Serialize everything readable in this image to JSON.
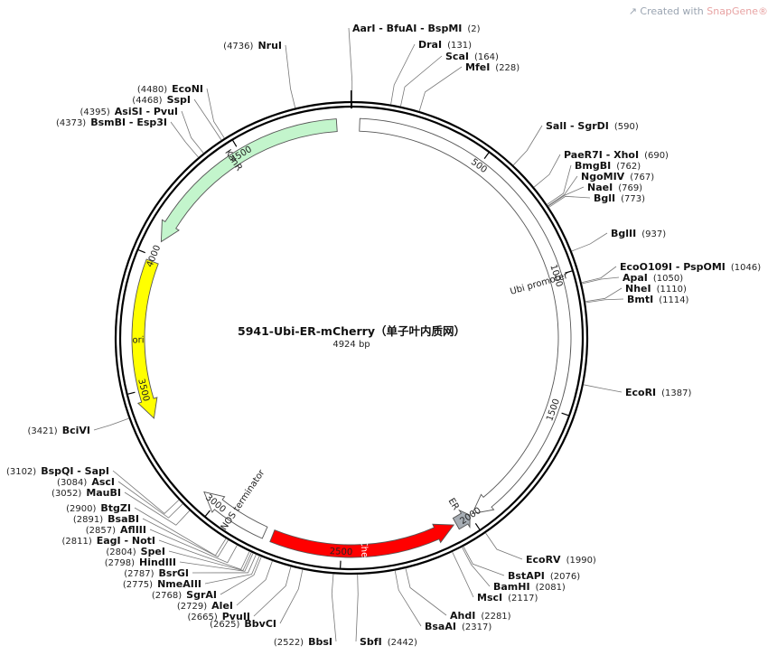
{
  "plasmid": {
    "name": "5941-Ubi-ER-mCherry（单子叶内质网）",
    "length_label": "4924 bp",
    "length": 4924
  },
  "watermark": {
    "prefix": "Created with ",
    "brand": "SnapGene®"
  },
  "ticks": [
    {
      "pos": 500,
      "label": "500"
    },
    {
      "pos": 1000,
      "label": "1000"
    },
    {
      "pos": 1500,
      "label": "1500"
    },
    {
      "pos": 2000,
      "label": "2000"
    },
    {
      "pos": 2500,
      "label": "2500"
    },
    {
      "pos": 3000,
      "label": "3000"
    },
    {
      "pos": 3500,
      "label": "3500"
    },
    {
      "pos": 4000,
      "label": "4000"
    },
    {
      "pos": 4500,
      "label": "4500"
    }
  ],
  "features": [
    {
      "name": "Ubi promoter",
      "start": 30,
      "end": 1990,
      "strand": 1,
      "color": "#ffffff",
      "label_color": "#222222"
    },
    {
      "name": "ER",
      "start": 2000,
      "end": 2060,
      "strand": -1,
      "color": "#a6adb4",
      "label_color": "#222222"
    },
    {
      "name": "mCherry",
      "start": 2070,
      "end": 2760,
      "strand": -1,
      "color": "#ff0000",
      "label_color": "#ffffff"
    },
    {
      "name": "NOS terminator",
      "start": 2790,
      "end": 3060,
      "strand": 1,
      "color": "#ffffff",
      "label_color": "#222222"
    },
    {
      "name": "ori",
      "start": 3390,
      "end": 3980,
      "strand": -1,
      "color": "#ffff00",
      "label_color": "#222222"
    },
    {
      "name": "KanR",
      "start": 4060,
      "end": 4870,
      "strand": -1,
      "color": "#c3f5cc",
      "label_color": "#222222"
    }
  ],
  "sites_right": [
    {
      "name": "AarI - BfuAI - BspMI",
      "pos": "(2)",
      "bp": 2
    },
    {
      "name": "DraI",
      "pos": "(131)",
      "bp": 131
    },
    {
      "name": "ScaI",
      "pos": "(164)",
      "bp": 164
    },
    {
      "name": "MfeI",
      "pos": "(228)",
      "bp": 228
    },
    {
      "name": "SalI - SgrDI",
      "pos": "(590)",
      "bp": 590
    },
    {
      "name": "PaeR7I - XhoI",
      "pos": "(690)",
      "bp": 690
    },
    {
      "name": "BmgBI",
      "pos": "(762)",
      "bp": 762
    },
    {
      "name": "NgoMIV",
      "pos": "(767)",
      "bp": 767
    },
    {
      "name": "NaeI",
      "pos": "(769)",
      "bp": 769
    },
    {
      "name": "BglI",
      "pos": "(773)",
      "bp": 773
    },
    {
      "name": "BglII",
      "pos": "(937)",
      "bp": 937
    },
    {
      "name": "EcoO109I - PspOMI",
      "pos": "(1046)",
      "bp": 1046
    },
    {
      "name": "ApaI",
      "pos": "(1050)",
      "bp": 1050
    },
    {
      "name": "NheI",
      "pos": "(1110)",
      "bp": 1110
    },
    {
      "name": "BmtI",
      "pos": "(1114)",
      "bp": 1114
    },
    {
      "name": "EcoRI",
      "pos": "(1387)",
      "bp": 1387
    },
    {
      "name": "EcoRV",
      "pos": "(1990)",
      "bp": 1990
    },
    {
      "name": "BstAPI",
      "pos": "(2076)",
      "bp": 2076
    },
    {
      "name": "BamHI",
      "pos": "(2081)",
      "bp": 2081
    },
    {
      "name": "MscI",
      "pos": "(2117)",
      "bp": 2117
    },
    {
      "name": "AhdI",
      "pos": "(2281)",
      "bp": 2281
    },
    {
      "name": "BsaAI",
      "pos": "(2317)",
      "bp": 2317
    },
    {
      "name": "SbfI",
      "pos": "(2442)",
      "bp": 2442
    }
  ],
  "sites_left": [
    {
      "name": "NruI",
      "pos": "(4736)",
      "bp": 4736
    },
    {
      "name": "EcoNI",
      "pos": "(4480)",
      "bp": 4480
    },
    {
      "name": "SspI",
      "pos": "(4468)",
      "bp": 4468
    },
    {
      "name": "AsiSI - PvuI",
      "pos": "(4395)",
      "bp": 4395
    },
    {
      "name": "BsmBI - Esp3I",
      "pos": "(4373)",
      "bp": 4373
    },
    {
      "name": "BciVI",
      "pos": "(3421)",
      "bp": 3421
    },
    {
      "name": "BspQI - SapI",
      "pos": "(3102)",
      "bp": 3102
    },
    {
      "name": "AscI",
      "pos": "(3084)",
      "bp": 3084
    },
    {
      "name": "MauBI",
      "pos": "(3052)",
      "bp": 3052
    },
    {
      "name": "BtgZI",
      "pos": "(2900)",
      "bp": 2900
    },
    {
      "name": "BsaBI",
      "pos": "(2891)",
      "bp": 2891
    },
    {
      "name": "AflIII",
      "pos": "(2857)",
      "bp": 2857
    },
    {
      "name": "EagI - NotI",
      "pos": "(2811)",
      "bp": 2811
    },
    {
      "name": "SpeI",
      "pos": "(2804)",
      "bp": 2804
    },
    {
      "name": "HindIII",
      "pos": "(2798)",
      "bp": 2798
    },
    {
      "name": "BsrGI",
      "pos": "(2787)",
      "bp": 2787
    },
    {
      "name": "NmeAIII",
      "pos": "(2775)",
      "bp": 2775
    },
    {
      "name": "SgrAI",
      "pos": "(2768)",
      "bp": 2768
    },
    {
      "name": "AleI",
      "pos": "(2729)",
      "bp": 2729
    },
    {
      "name": "PvuII",
      "pos": "(2665)",
      "bp": 2665
    },
    {
      "name": "BbvCI",
      "pos": "(2625)",
      "bp": 2625
    },
    {
      "name": "BbsI",
      "pos": "(2522)",
      "bp": 2522
    }
  ]
}
